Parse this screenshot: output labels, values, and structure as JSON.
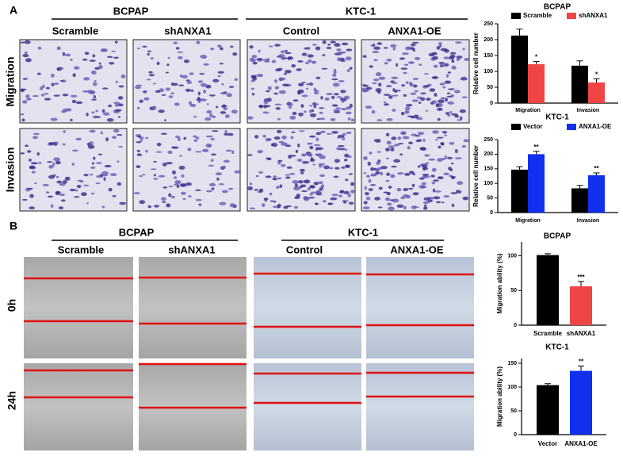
{
  "panel_a": {
    "label": "A",
    "groups": [
      {
        "title": "BCPAP",
        "columns": [
          "Scramble",
          "shANXA1"
        ]
      },
      {
        "title": "KTC-1",
        "columns": [
          "Control",
          "ANXA1-OE"
        ]
      }
    ],
    "rows": [
      "Migration",
      "Invasion"
    ]
  },
  "panel_b": {
    "label": "B",
    "groups": [
      {
        "title": "BCPAP",
        "columns": [
          "Scramble",
          "shANXA1"
        ]
      },
      {
        "title": "KTC-1",
        "columns": [
          "Control",
          "ANXA1-OE"
        ]
      }
    ],
    "rows": [
      "0h",
      "24h"
    ]
  },
  "chart_data": [
    {
      "type": "bar",
      "title": "BCPAP",
      "y_label": "Relative cell number",
      "categories": [
        "Migration",
        "Invasion"
      ],
      "series": [
        {
          "name": "Scramble",
          "color": "#000000",
          "values": [
            213,
            118
          ],
          "errors": [
            20,
            15
          ]
        },
        {
          "name": "shANXA1",
          "color": "#f04545",
          "values": [
            123,
            65
          ],
          "errors": [
            8,
            12
          ],
          "annotations": [
            "*",
            "*"
          ]
        }
      ],
      "ylim": [
        0,
        250
      ],
      "yticks": [
        0,
        50,
        100,
        150,
        200,
        250
      ]
    },
    {
      "type": "bar",
      "title": "KTC-1",
      "y_label": "Relative cell number",
      "categories": [
        "Migration",
        "Invasion"
      ],
      "series": [
        {
          "name": "Vector",
          "color": "#000000",
          "values": [
            147,
            83
          ],
          "errors": [
            10,
            10
          ]
        },
        {
          "name": "ANXA1-OE",
          "color": "#1030ee",
          "values": [
            200,
            128
          ],
          "errors": [
            10,
            8
          ],
          "annotations": [
            "**",
            "**"
          ]
        }
      ],
      "ylim": [
        0,
        250
      ],
      "yticks": [
        0,
        50,
        100,
        150,
        200,
        250
      ]
    },
    {
      "type": "column",
      "title": "BCPAP",
      "y_label": "Migration ability (%)",
      "categories": [
        "Scramble",
        "shANXA1"
      ],
      "values": [
        101,
        56
      ],
      "errors": [
        2,
        7
      ],
      "colors": [
        "#000000",
        "#f04545"
      ],
      "annotations": [
        null,
        "***"
      ],
      "ylim": [
        0,
        120
      ],
      "yticks": [
        0,
        50,
        100
      ]
    },
    {
      "type": "column",
      "title": "KTC-1",
      "y_label": "Migration ability (%)",
      "categories": [
        "Vector",
        "ANXA1-OE"
      ],
      "values": [
        104,
        134
      ],
      "errors": [
        3,
        10
      ],
      "colors": [
        "#000000",
        "#1030ee"
      ],
      "annotations": [
        null,
        "**"
      ],
      "ylim": [
        0,
        160
      ],
      "yticks": [
        0,
        50,
        100,
        150
      ]
    }
  ]
}
